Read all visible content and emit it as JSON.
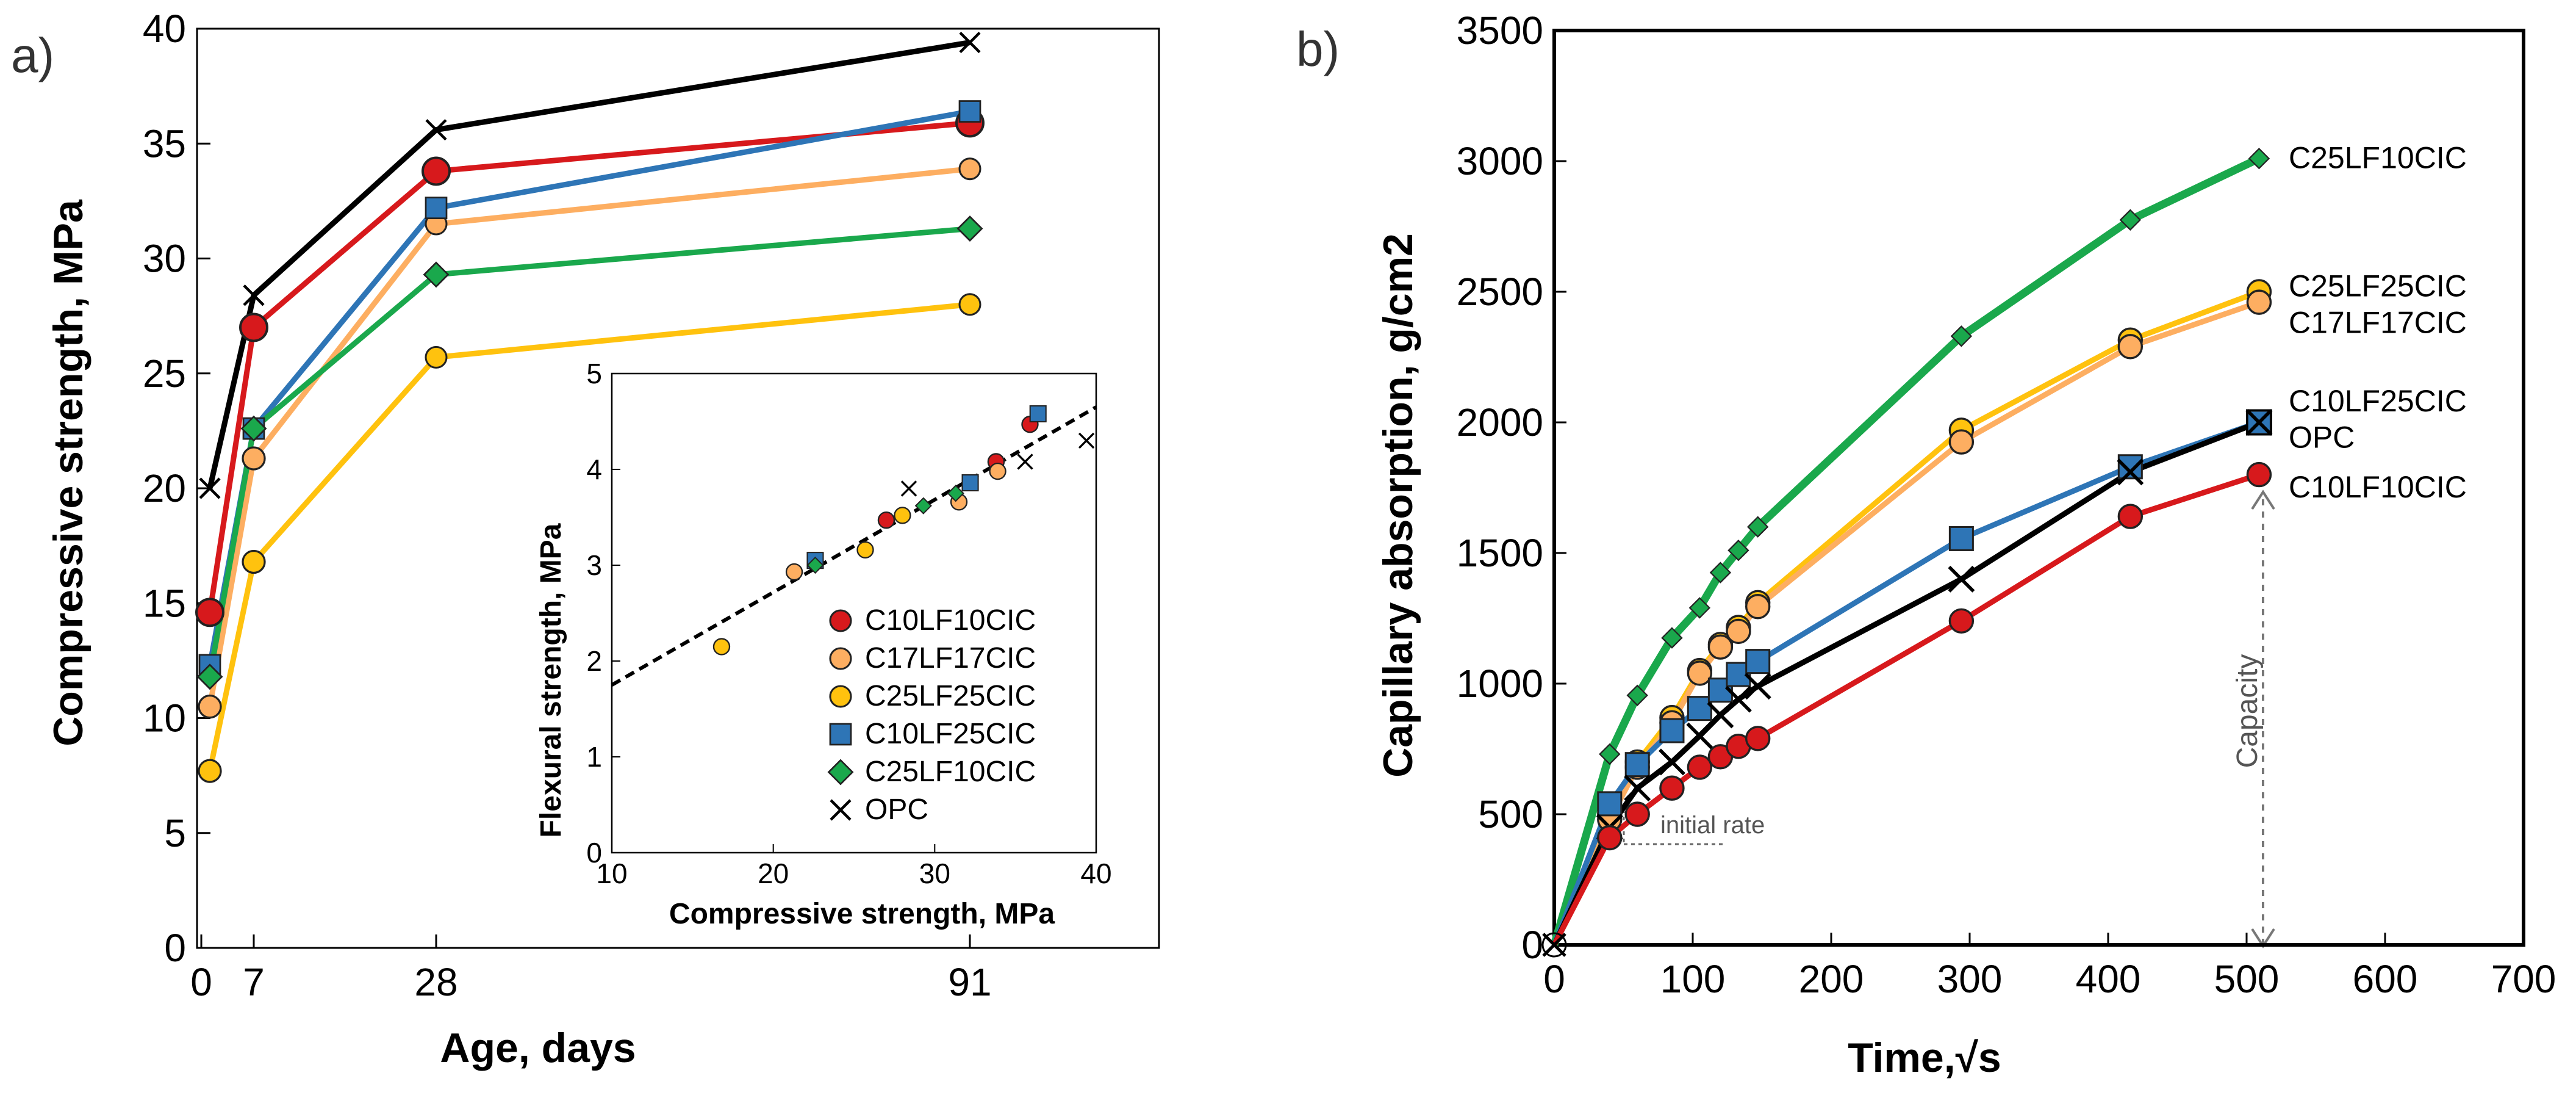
{
  "chart_data": [
    {
      "panel": "a)",
      "type": "line",
      "xlabel": "Age, days",
      "ylabel": "Compressive strength, MPa",
      "x_ticks": [
        0,
        7,
        28,
        91
      ],
      "x_tick_labels": [
        "0",
        "7",
        "28",
        "91"
      ],
      "ylim": [
        0,
        40
      ],
      "y_ticks": [
        0,
        5,
        10,
        15,
        20,
        25,
        30,
        35,
        40
      ],
      "x": [
        1,
        7,
        28,
        91
      ],
      "series": [
        {
          "name": "OPC",
          "color": "#000000",
          "marker": "x",
          "values": [
            20.0,
            28.4,
            35.6,
            39.4
          ]
        },
        {
          "name": "C10LF10CIC",
          "color": "#d7191c",
          "marker": "circle",
          "values": [
            14.6,
            27.0,
            33.8,
            35.9
          ]
        },
        {
          "name": "C17LF17CIC",
          "color": "#fdae61",
          "marker": "circle",
          "values": [
            10.5,
            21.3,
            31.5,
            33.9
          ]
        },
        {
          "name": "C25LF25CIC",
          "color": "#ffc20e",
          "marker": "circle",
          "values": [
            7.7,
            16.8,
            25.7,
            28.0
          ]
        },
        {
          "name": "C10LF25CIC",
          "color": "#2e75b6",
          "marker": "square",
          "values": [
            12.3,
            22.6,
            32.2,
            36.4
          ]
        },
        {
          "name": "C25LF10CIC",
          "color": "#1aa84c",
          "marker": "diamond",
          "values": [
            11.8,
            22.6,
            29.3,
            31.3
          ]
        }
      ]
    },
    {
      "panel": "inset",
      "type": "scatter",
      "xlabel": "Compressive strength, MPa",
      "ylabel": "Flexural strength, MPa",
      "xlim": [
        10,
        40
      ],
      "ylim": [
        0,
        5
      ],
      "x_ticks": [
        10,
        20,
        30,
        40
      ],
      "y_ticks": [
        0,
        1,
        2,
        3,
        4,
        5
      ],
      "trendline": {
        "style": "dashed",
        "x": [
          10,
          40
        ],
        "y": [
          1.75,
          4.65
        ]
      },
      "legend": {
        "position": "bottom-right"
      },
      "series": [
        {
          "name": "C10LF10CIC",
          "color": "#d7191c",
          "marker": "circle",
          "points": [
            [
              27.0,
              3.47
            ],
            [
              33.8,
              4.08
            ],
            [
              35.9,
              4.47
            ]
          ]
        },
        {
          "name": "C17LF17CIC",
          "color": "#fdae61",
          "marker": "circle",
          "points": [
            [
              21.3,
              2.93
            ],
            [
              31.5,
              3.66
            ],
            [
              33.9,
              3.98
            ]
          ]
        },
        {
          "name": "C25LF25CIC",
          "color": "#ffc20e",
          "marker": "circle",
          "points": [
            [
              16.8,
              2.15
            ],
            [
              25.7,
              3.16
            ],
            [
              28.0,
              3.52
            ]
          ]
        },
        {
          "name": "C10LF25CIC",
          "color": "#2e75b6",
          "marker": "square",
          "points": [
            [
              22.6,
              3.05
            ],
            [
              32.2,
              3.86
            ],
            [
              36.4,
              4.58
            ]
          ]
        },
        {
          "name": "C25LF10CIC",
          "color": "#1aa84c",
          "marker": "diamond",
          "points": [
            [
              22.6,
              3.0
            ],
            [
              29.3,
              3.62
            ],
            [
              31.3,
              3.75
            ]
          ]
        },
        {
          "name": "OPC",
          "color": "#000000",
          "marker": "x",
          "points": [
            [
              28.4,
              3.8
            ],
            [
              35.6,
              4.08
            ],
            [
              39.4,
              4.3
            ]
          ]
        }
      ]
    },
    {
      "panel": "b)",
      "type": "line",
      "xlabel": "Time,√s",
      "ylabel": "Capillary absorption, g/cm2",
      "xlim": [
        0,
        700
      ],
      "ylim": [
        0,
        3500
      ],
      "x_ticks": [
        0,
        100,
        200,
        300,
        400,
        500,
        600,
        700
      ],
      "y_ticks": [
        0,
        500,
        1000,
        1500,
        2000,
        2500,
        3000,
        3500
      ],
      "annotations": [
        "initial rate",
        "Capacity"
      ],
      "series": [
        {
          "name": "C25LF10CIC",
          "color": "#1aa84c",
          "marker": "diamond",
          "points": [
            [
              0,
              0
            ],
            [
              40,
              730
            ],
            [
              60,
              955
            ],
            [
              85,
              1175
            ],
            [
              105,
              1290
            ],
            [
              120,
              1425
            ],
            [
              133,
              1510
            ],
            [
              147,
              1600
            ],
            [
              294,
              2330
            ],
            [
              416,
              2775
            ],
            [
              509,
              3010
            ]
          ]
        },
        {
          "name": "C25LF25CIC",
          "color": "#ffc20e",
          "marker": "circle",
          "points": [
            [
              0,
              0
            ],
            [
              40,
              500
            ],
            [
              60,
              700
            ],
            [
              85,
              870
            ],
            [
              105,
              1050
            ],
            [
              120,
              1150
            ],
            [
              133,
              1215
            ],
            [
              147,
              1310
            ],
            [
              294,
              1970
            ],
            [
              416,
              2315
            ],
            [
              509,
              2500
            ]
          ]
        },
        {
          "name": "C17LF17CIC",
          "color": "#fdae61",
          "marker": "circle",
          "points": [
            [
              0,
              0
            ],
            [
              40,
              480
            ],
            [
              60,
              680
            ],
            [
              85,
              850
            ],
            [
              105,
              1040
            ],
            [
              120,
              1140
            ],
            [
              133,
              1200
            ],
            [
              147,
              1295
            ],
            [
              294,
              1925
            ],
            [
              416,
              2290
            ],
            [
              509,
              2460
            ]
          ]
        },
        {
          "name": "C10LF25CIC",
          "color": "#2e75b6",
          "marker": "square",
          "points": [
            [
              0,
              0
            ],
            [
              40,
              540
            ],
            [
              60,
              690
            ],
            [
              85,
              820
            ],
            [
              105,
              905
            ],
            [
              120,
              975
            ],
            [
              133,
              1035
            ],
            [
              147,
              1085
            ],
            [
              294,
              1555
            ],
            [
              416,
              1830
            ],
            [
              509,
              2000
            ]
          ]
        },
        {
          "name": "OPC",
          "color": "#000000",
          "marker": "x",
          "points": [
            [
              0,
              0
            ],
            [
              40,
              450
            ],
            [
              60,
              600
            ],
            [
              85,
              700
            ],
            [
              105,
              800
            ],
            [
              120,
              880
            ],
            [
              133,
              940
            ],
            [
              147,
              990
            ],
            [
              294,
              1400
            ],
            [
              416,
              1810
            ],
            [
              509,
              2000
            ]
          ]
        },
        {
          "name": "C10LF10CIC",
          "color": "#d7191c",
          "marker": "circle",
          "points": [
            [
              0,
              0
            ],
            [
              40,
              410
            ],
            [
              60,
              500
            ],
            [
              85,
              600
            ],
            [
              105,
              680
            ],
            [
              120,
              720
            ],
            [
              133,
              760
            ],
            [
              147,
              790
            ],
            [
              294,
              1240
            ],
            [
              416,
              1640
            ],
            [
              509,
              1800
            ]
          ]
        }
      ]
    }
  ]
}
